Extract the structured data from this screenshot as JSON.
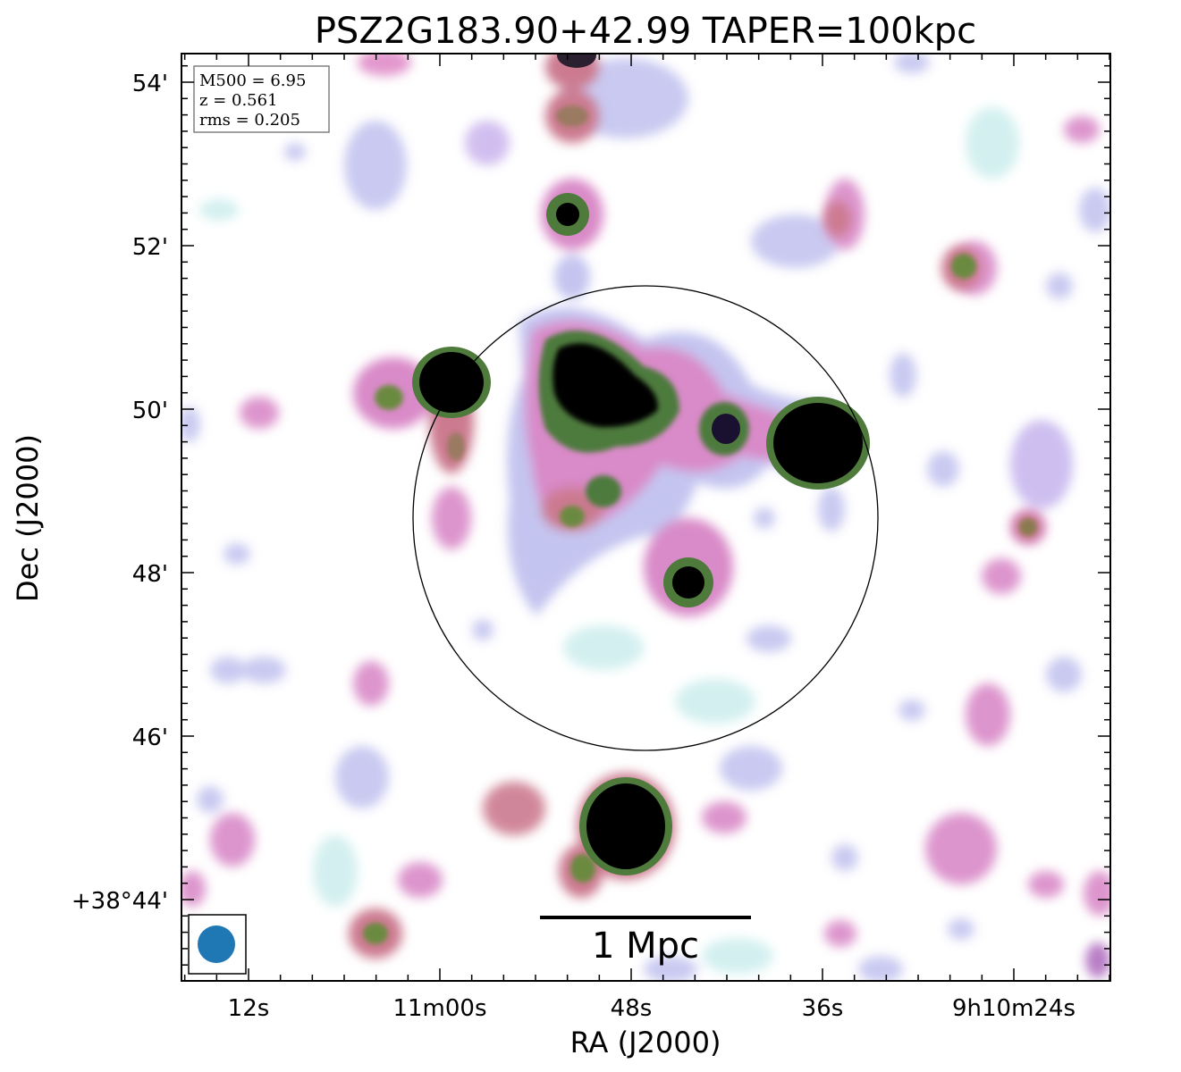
{
  "title": "PSZ2G183.90+42.99 TAPER=100kpc",
  "info_box": {
    "mass": "M500 = 6.95",
    "redshift": "z = 0.561",
    "rms": "rms = 0.205"
  },
  "axes": {
    "xlabel": "RA (J2000)",
    "ylabel": "Dec (J2000)",
    "x_ticks": [
      "12s",
      "11m00s",
      "48s",
      "36s",
      "9h10m24s"
    ],
    "y_ticks": [
      "54'",
      "52'",
      "50'",
      "48'",
      "46'",
      "+38°44'"
    ]
  },
  "scale_bar": {
    "label": "1 Mpc"
  },
  "colors": {
    "faint": "#cfeeee",
    "low": "#b8b8ee",
    "mid": "#d98ac8",
    "warm": "#cc7a90",
    "green": "#4e7a3c",
    "core": "#000000",
    "beam": "#1f77b4"
  }
}
